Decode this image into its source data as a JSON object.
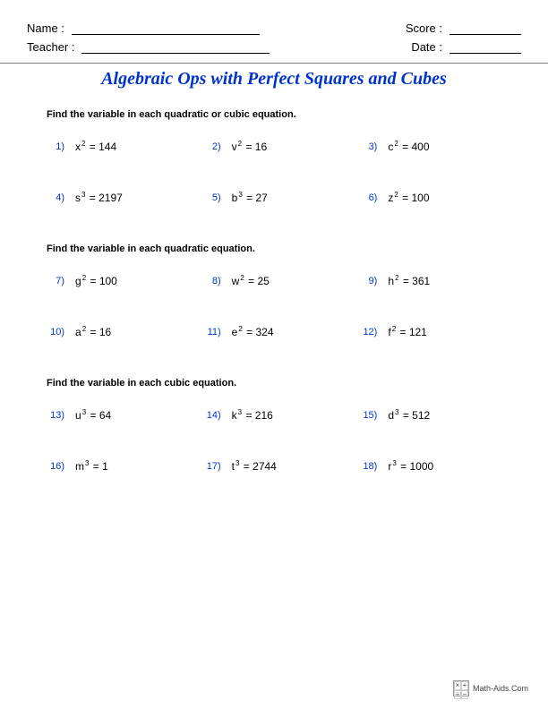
{
  "header": {
    "name_label": "Name :",
    "teacher_label": "Teacher :",
    "score_label": "Score :",
    "date_label": "Date :"
  },
  "title": "Algebraic Ops with Perfect Squares and Cubes",
  "title_color": "#0033cc",
  "number_color": "#0033cc",
  "sections": [
    {
      "instruction": "Find the variable in each quadratic or cubic equation.",
      "problems": [
        {
          "n": "1)",
          "var": "x",
          "pow": "2",
          "val": "144"
        },
        {
          "n": "2)",
          "var": "v",
          "pow": "2",
          "val": "16"
        },
        {
          "n": "3)",
          "var": "c",
          "pow": "2",
          "val": "400"
        },
        {
          "n": "4)",
          "var": "s",
          "pow": "3",
          "val": "2197"
        },
        {
          "n": "5)",
          "var": "b",
          "pow": "3",
          "val": "27"
        },
        {
          "n": "6)",
          "var": "z",
          "pow": "2",
          "val": "100"
        }
      ]
    },
    {
      "instruction": "Find the variable in each quadratic equation.",
      "problems": [
        {
          "n": "7)",
          "var": "g",
          "pow": "2",
          "val": "100"
        },
        {
          "n": "8)",
          "var": "w",
          "pow": "2",
          "val": "25"
        },
        {
          "n": "9)",
          "var": "h",
          "pow": "2",
          "val": "361"
        },
        {
          "n": "10)",
          "var": "a",
          "pow": "2",
          "val": "16"
        },
        {
          "n": "11)",
          "var": "e",
          "pow": "2",
          "val": "324"
        },
        {
          "n": "12)",
          "var": "f",
          "pow": "2",
          "val": "121"
        }
      ]
    },
    {
      "instruction": "Find the variable in each cubic equation.",
      "problems": [
        {
          "n": "13)",
          "var": "u",
          "pow": "3",
          "val": "64"
        },
        {
          "n": "14)",
          "var": "k",
          "pow": "3",
          "val": "216"
        },
        {
          "n": "15)",
          "var": "d",
          "pow": "3",
          "val": "512"
        },
        {
          "n": "16)",
          "var": "m",
          "pow": "3",
          "val": "1"
        },
        {
          "n": "17)",
          "var": "t",
          "pow": "3",
          "val": "2744"
        },
        {
          "n": "18)",
          "var": "r",
          "pow": "3",
          "val": "1000"
        }
      ]
    }
  ],
  "footer": {
    "text": "Math-Aids.Com"
  }
}
